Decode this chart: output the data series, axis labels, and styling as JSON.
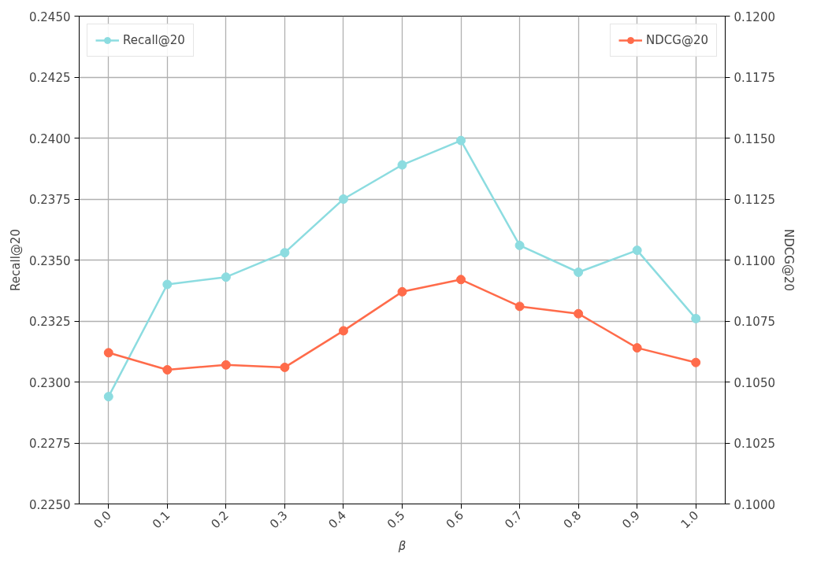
{
  "chart_data": {
    "type": "line",
    "xlabel": "β",
    "ylabel": "Recall@20",
    "y2label": "NDCG@20",
    "x": [
      0.0,
      0.1,
      0.2,
      0.3,
      0.4,
      0.5,
      0.6,
      0.7,
      0.8,
      0.9,
      1.0
    ],
    "series": [
      {
        "name": "Recall@20",
        "color": "#8cdce0",
        "values": [
          0.2294,
          0.234,
          0.2343,
          0.2353,
          0.2375,
          0.2389,
          0.2399,
          0.2356,
          0.2345,
          0.2354,
          0.2326
        ]
      },
      {
        "name": "NDCG@20",
        "color": "#ff6b4a",
        "axis": "y2",
        "values": [
          0.1062,
          0.1055,
          0.1057,
          0.1056,
          0.1071,
          0.1087,
          0.1092,
          0.1081,
          0.1078,
          0.1064,
          0.1058
        ]
      }
    ],
    "xlim": [
      -0.05,
      1.05
    ],
    "xticks": [
      {
        "value": 0.0,
        "label": "0.0"
      },
      {
        "value": 0.1,
        "label": "0.1"
      },
      {
        "value": 0.2,
        "label": "0.2"
      },
      {
        "value": 0.3,
        "label": "0.3"
      },
      {
        "value": 0.4,
        "label": "0.4"
      },
      {
        "value": 0.5,
        "label": "0.5"
      },
      {
        "value": 0.6,
        "label": "0.6"
      },
      {
        "value": 0.7,
        "label": "0.7"
      },
      {
        "value": 0.8,
        "label": "0.8"
      },
      {
        "value": 0.9,
        "label": "0.9"
      },
      {
        "value": 1.0,
        "label": "1.0"
      }
    ],
    "ylim": [
      0.225,
      0.245
    ],
    "yticks": [
      {
        "value": 0.225,
        "label": "0.2250"
      },
      {
        "value": 0.2275,
        "label": "0.2275"
      },
      {
        "value": 0.23,
        "label": "0.2300"
      },
      {
        "value": 0.2325,
        "label": "0.2325"
      },
      {
        "value": 0.235,
        "label": "0.2350"
      },
      {
        "value": 0.2375,
        "label": "0.2375"
      },
      {
        "value": 0.24,
        "label": "0.2400"
      },
      {
        "value": 0.2425,
        "label": "0.2425"
      },
      {
        "value": 0.245,
        "label": "0.2450"
      }
    ],
    "y2lim": [
      0.1,
      0.12
    ],
    "y2ticks": [
      {
        "value": 0.1,
        "label": "0.1000"
      },
      {
        "value": 0.1025,
        "label": "0.1025"
      },
      {
        "value": 0.105,
        "label": "0.1050"
      },
      {
        "value": 0.1075,
        "label": "0.1075"
      },
      {
        "value": 0.11,
        "label": "0.1100"
      },
      {
        "value": 0.1125,
        "label": "0.1125"
      },
      {
        "value": 0.115,
        "label": "0.1150"
      },
      {
        "value": 0.1175,
        "label": "0.1175"
      },
      {
        "value": 0.12,
        "label": "0.1200"
      }
    ],
    "grid": true,
    "legend": "top",
    "marker": "circle",
    "line_style": "solid"
  }
}
